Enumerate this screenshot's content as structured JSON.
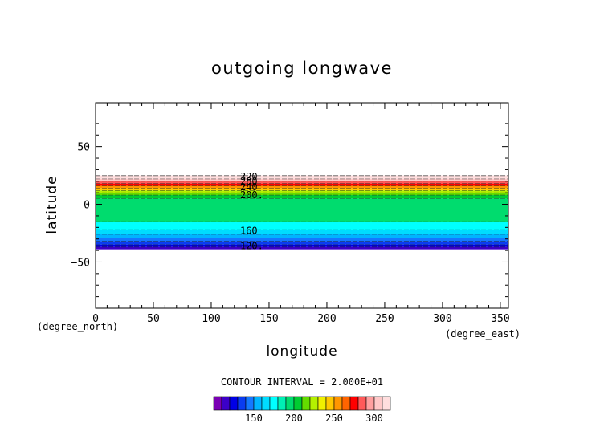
{
  "chart_data": {
    "type": "heatmap",
    "title": "outgoing longwave",
    "xlabel": "longitude",
    "ylabel": "latitude",
    "x_unit": "(degree_east)",
    "y_unit": "(degree_north)",
    "xlim": [
      0,
      357
    ],
    "ylim": [
      -90,
      88
    ],
    "xticks": [
      0,
      50,
      100,
      150,
      200,
      250,
      300,
      350
    ],
    "yticks": [
      -50,
      0,
      50
    ],
    "data_lat_range": [
      -39,
      25
    ],
    "contour_interval_text": "CONTOUR INTERVAL = 2.000E+01",
    "contour_labels": [
      {
        "text": "320",
        "value": 320,
        "lon": 125,
        "lat": 24
      },
      {
        "text": "280",
        "value": 280,
        "lon": 125,
        "lat": 20
      },
      {
        "text": "240",
        "value": 240,
        "lon": 125,
        "lat": 15
      },
      {
        "text": "200.",
        "value": 200,
        "lon": 125,
        "lat": 8
      },
      {
        "text": "160",
        "value": 160,
        "lon": 125,
        "lat": -23
      },
      {
        "text": "120.",
        "value": 120,
        "lon": 125,
        "lat": -36
      }
    ],
    "lat_bands": [
      {
        "lat": [
          24,
          25
        ],
        "value": 330
      },
      {
        "lat": [
          22,
          24
        ],
        "value": 315
      },
      {
        "lat": [
          20,
          22
        ],
        "value": 300
      },
      {
        "lat": [
          18,
          20
        ],
        "value": 285
      },
      {
        "lat": [
          16,
          18
        ],
        "value": 270
      },
      {
        "lat": [
          14,
          16
        ],
        "value": 255
      },
      {
        "lat": [
          12,
          14
        ],
        "value": 240
      },
      {
        "lat": [
          10,
          12
        ],
        "value": 225
      },
      {
        "lat": [
          8,
          10
        ],
        "value": 212
      },
      {
        "lat": [
          5,
          8
        ],
        "value": 200
      },
      {
        "lat": [
          -15,
          5
        ],
        "value": 190
      },
      {
        "lat": [
          -22,
          -15
        ],
        "value": 178
      },
      {
        "lat": [
          -26,
          -22
        ],
        "value": 165
      },
      {
        "lat": [
          -29,
          -26
        ],
        "value": 155
      },
      {
        "lat": [
          -32,
          -29
        ],
        "value": 145
      },
      {
        "lat": [
          -35,
          -32
        ],
        "value": 135
      },
      {
        "lat": [
          -37,
          -35
        ],
        "value": 125
      },
      {
        "lat": [
          -39,
          -37
        ],
        "value": 112
      }
    ],
    "colorbar": {
      "min": 100,
      "max": 320,
      "step": 10,
      "tick_labels": [
        150,
        200,
        250,
        300
      ],
      "colors": [
        "#7a00b4",
        "#3c00c8",
        "#0000e6",
        "#0a3cf0",
        "#1478ff",
        "#00b4ff",
        "#00dcff",
        "#00ffff",
        "#00f0b4",
        "#00dc6e",
        "#00cc32",
        "#64dc00",
        "#b4f000",
        "#f0f000",
        "#ffc800",
        "#ff9600",
        "#ff6400",
        "#ff0000",
        "#ff5a5a",
        "#ffa0a0",
        "#ffc8c8",
        "#ffdede"
      ]
    }
  }
}
